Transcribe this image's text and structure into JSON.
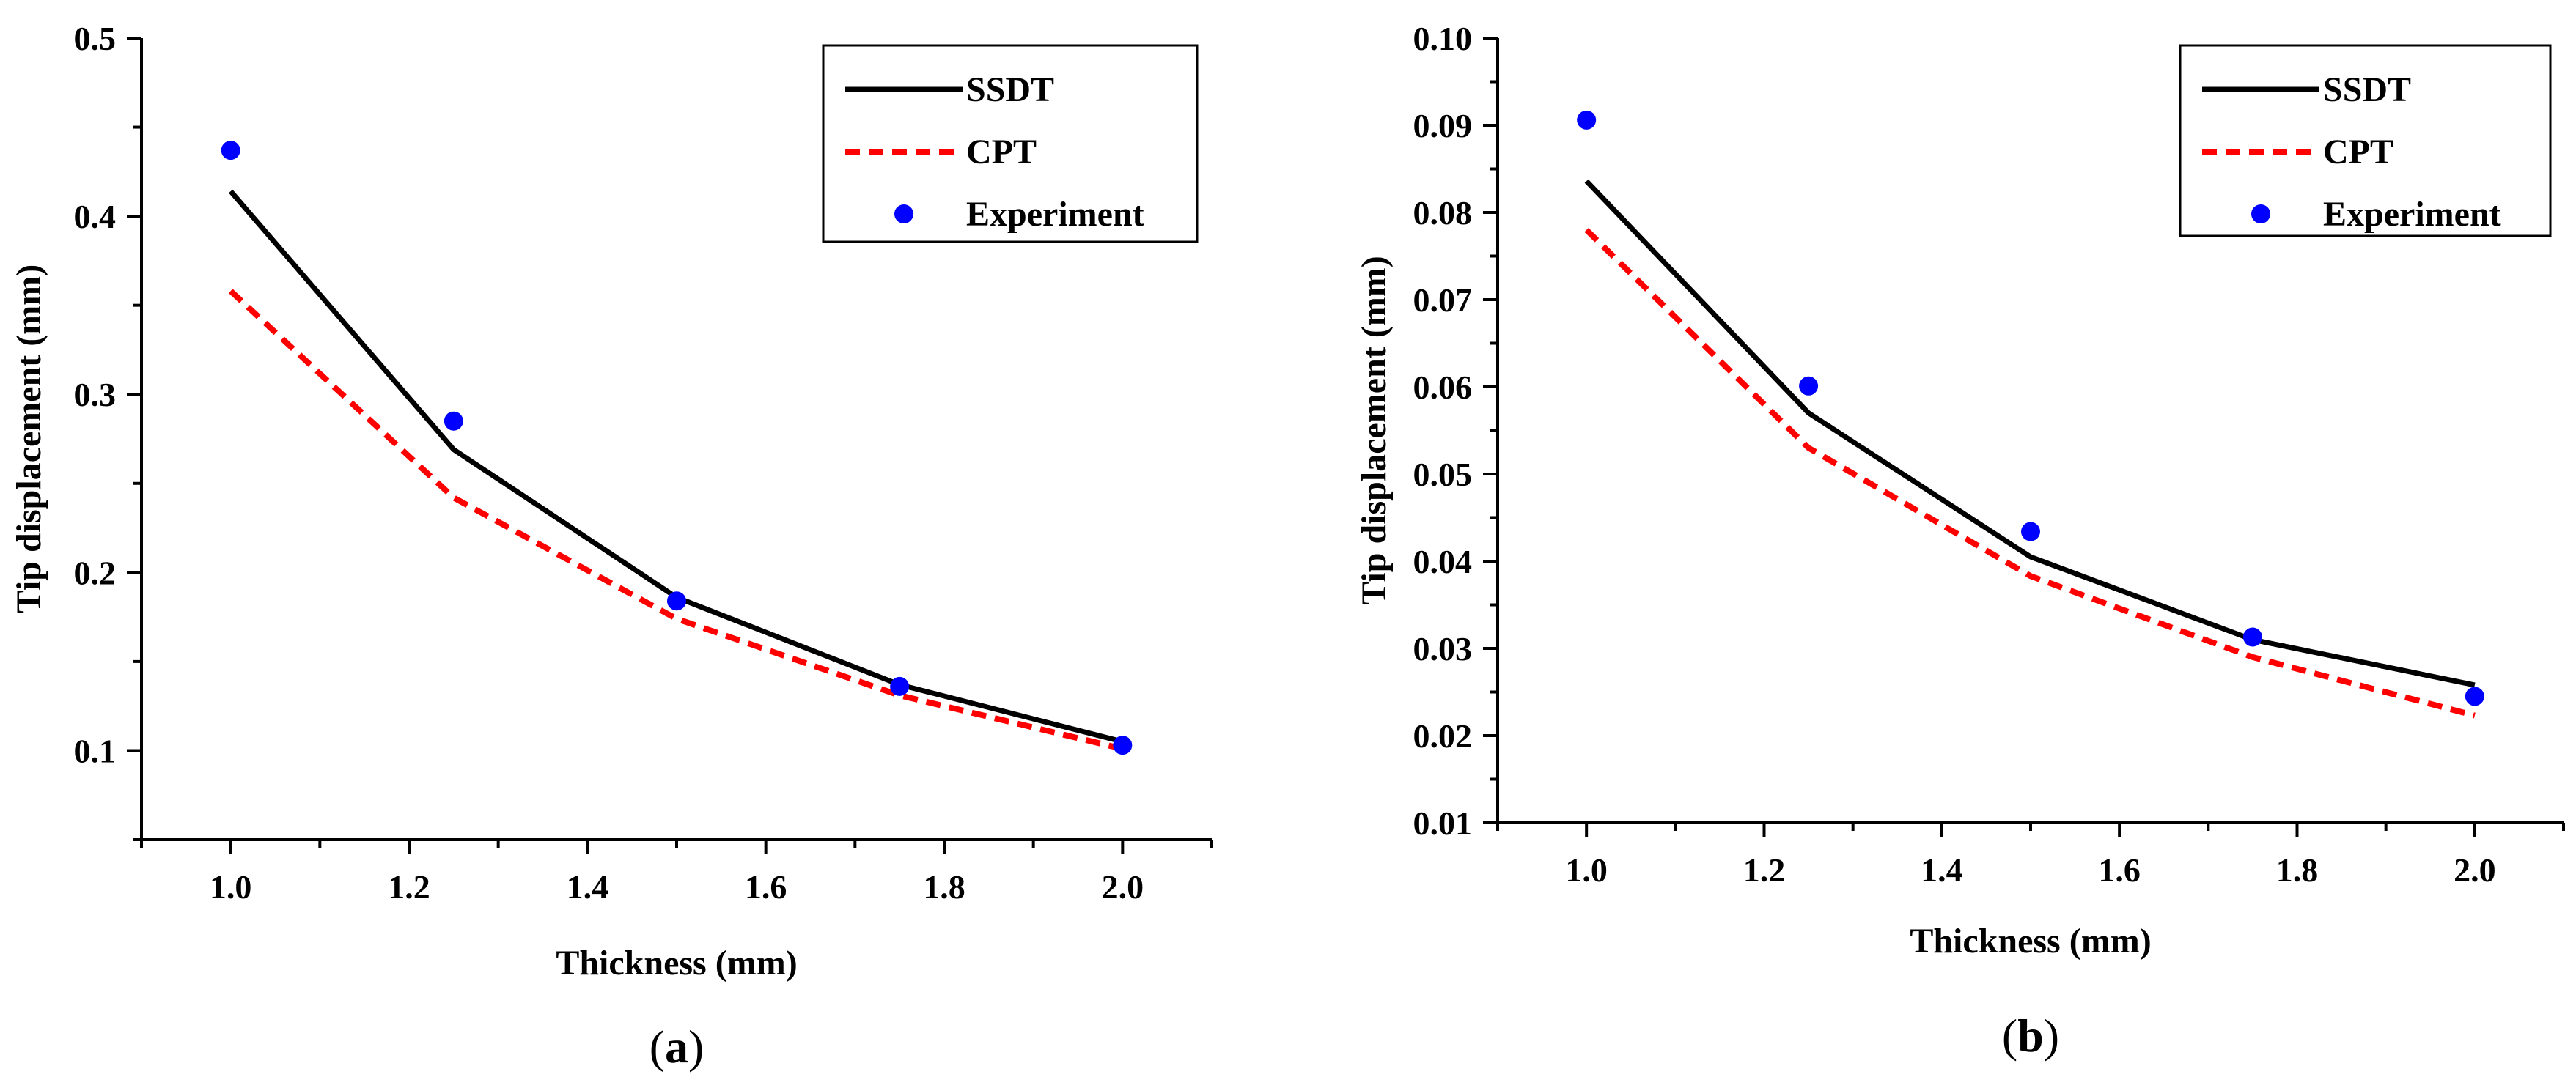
{
  "chart_data": [
    {
      "type": "line",
      "panel_label_open": "(",
      "panel_label_letter": "a",
      "panel_label_close": ")",
      "xlabel": "Thickness (mm)",
      "ylabel": "Tip displacement (mm)",
      "xlim": [
        0.9,
        2.1
      ],
      "ylim": [
        0.05,
        0.5
      ],
      "xticks": [
        1.0,
        1.2,
        1.4,
        1.6,
        1.8,
        2.0
      ],
      "xtick_labels": [
        "1.0",
        "1.2",
        "1.4",
        "1.6",
        "1.8",
        "2.0"
      ],
      "yticks": [
        0.1,
        0.2,
        0.3,
        0.4,
        0.5
      ],
      "ytick_labels": [
        "0.1",
        "0.2",
        "0.3",
        "0.4",
        "0.5"
      ],
      "legend_position": "top-right",
      "series": [
        {
          "name": "SSDT",
          "style": "solid",
          "color": "#000000",
          "x": [
            1.0,
            1.25,
            1.5,
            1.75,
            2.0
          ],
          "y": [
            0.414,
            0.269,
            0.186,
            0.137,
            0.105
          ]
        },
        {
          "name": "CPT",
          "style": "dashed",
          "color": "#ff0000",
          "x": [
            1.0,
            1.25,
            1.5,
            1.75,
            2.0
          ],
          "y": [
            0.358,
            0.242,
            0.174,
            0.131,
            0.101
          ]
        },
        {
          "name": "Experiment",
          "style": "marker",
          "color": "#0000ff",
          "x": [
            1.0,
            1.25,
            1.5,
            1.75,
            2.0
          ],
          "y": [
            0.437,
            0.285,
            0.184,
            0.136,
            0.103
          ]
        }
      ]
    },
    {
      "type": "line",
      "panel_label_open": "(",
      "panel_label_letter": "b",
      "panel_label_close": ")",
      "xlabel": "Thickness (mm)",
      "ylabel": "Tip displacement (mm)",
      "xlim": [
        0.9,
        2.1
      ],
      "ylim": [
        0.01,
        0.1
      ],
      "xticks": [
        1.0,
        1.2,
        1.4,
        1.6,
        1.8,
        2.0
      ],
      "xtick_labels": [
        "1.0",
        "1.2",
        "1.4",
        "1.6",
        "1.8",
        "2.0"
      ],
      "yticks": [
        0.01,
        0.02,
        0.03,
        0.04,
        0.05,
        0.06,
        0.07,
        0.08,
        0.09,
        0.1
      ],
      "ytick_labels": [
        "0.01",
        "0.02",
        "0.03",
        "0.04",
        "0.05",
        "0.06",
        "0.07",
        "0.08",
        "0.09",
        "0.10"
      ],
      "legend_position": "top-right",
      "series": [
        {
          "name": "SSDT",
          "style": "solid",
          "color": "#000000",
          "x": [
            1.0,
            1.25,
            1.5,
            1.75,
            2.0
          ],
          "y": [
            0.0836,
            0.057,
            0.0405,
            0.031,
            0.0258
          ]
        },
        {
          "name": "CPT",
          "style": "dashed",
          "color": "#ff0000",
          "x": [
            1.0,
            1.25,
            1.5,
            1.75,
            2.0
          ],
          "y": [
            0.078,
            0.053,
            0.0383,
            0.029,
            0.0223
          ]
        },
        {
          "name": "Experiment",
          "style": "marker",
          "color": "#0000ff",
          "x": [
            1.0,
            1.25,
            1.5,
            1.75,
            2.0
          ],
          "y": [
            0.0906,
            0.0601,
            0.0434,
            0.0313,
            0.0245
          ]
        }
      ]
    }
  ]
}
